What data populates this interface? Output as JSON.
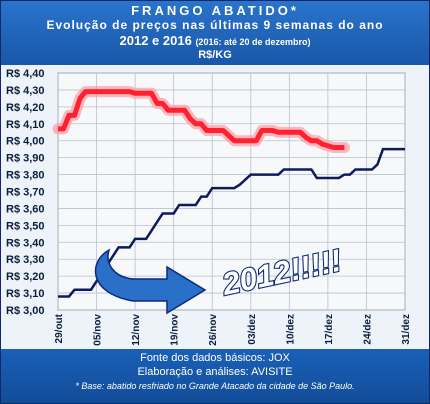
{
  "header": {
    "title": "FRANGO ABATIDO*",
    "subtitle": "Evolução de preços nas últimas 9 semanas do ano",
    "years": "2012 e 2016",
    "note": "(2016: até 20 de dezembro)",
    "unit": "R$/KG"
  },
  "footer": {
    "source": "Fonte dos dados básicos: JOX",
    "credit": "Elaboração e análises: AVISITE",
    "footnote": "* Base: abatido resfriado no Grande Atacado da cidade de São Paulo."
  },
  "colors": {
    "series_2016": "#ff2030",
    "series_2012": "#0d1b5e",
    "arrow": "#2a6fc8",
    "callout_text": "#0d2a7a"
  },
  "chart_data": {
    "type": "line",
    "ylim": [
      3.0,
      4.4
    ],
    "y_ticks": [
      "R$ 3,00",
      "R$ 3,10",
      "R$ 3,20",
      "R$ 3,30",
      "R$ 3,40",
      "R$ 3,50",
      "R$ 3,60",
      "R$ 3,70",
      "R$ 3,80",
      "R$ 3,90",
      "R$ 4,00",
      "R$ 4,10",
      "R$ 4,20",
      "R$ 4,30",
      "R$ 4,40"
    ],
    "x_ticks": [
      "29/out",
      "05/nov",
      "12/nov",
      "19/nov",
      "26/nov",
      "03/dez",
      "10/dez",
      "17/dez",
      "24/dez",
      "31/dez"
    ],
    "grid": true,
    "annotation": "2012!!!!!",
    "series": [
      {
        "name": "2016",
        "x": [
          "29/out",
          "30/out",
          "31/out",
          "01/nov",
          "02/nov",
          "03/nov",
          "04/nov",
          "05/nov",
          "06/nov",
          "07/nov",
          "08/nov",
          "09/nov",
          "10/nov",
          "11/nov",
          "12/nov",
          "13/nov",
          "14/nov",
          "15/nov",
          "16/nov",
          "17/nov",
          "18/nov",
          "19/nov",
          "20/nov",
          "21/nov",
          "22/nov",
          "23/nov",
          "24/nov",
          "25/nov",
          "26/nov",
          "27/nov",
          "28/nov",
          "29/nov",
          "30/nov",
          "01/dez",
          "02/dez",
          "03/dez",
          "04/dez",
          "05/dez",
          "06/dez",
          "07/dez",
          "08/dez",
          "09/dez",
          "10/dez",
          "11/dez",
          "12/dez",
          "13/dez",
          "14/dez",
          "15/dez",
          "16/dez",
          "17/dez",
          "18/dez",
          "19/dez",
          "20/dez"
        ],
        "values": [
          4.07,
          4.07,
          4.15,
          4.15,
          4.25,
          4.29,
          4.29,
          4.29,
          4.29,
          4.29,
          4.29,
          4.29,
          4.29,
          4.29,
          4.28,
          4.28,
          4.28,
          4.28,
          4.22,
          4.22,
          4.18,
          4.18,
          4.18,
          4.18,
          4.13,
          4.1,
          4.1,
          4.06,
          4.06,
          4.06,
          4.06,
          4.03,
          4.0,
          4.0,
          4.0,
          4.0,
          4.0,
          4.06,
          4.06,
          4.06,
          4.05,
          4.05,
          4.05,
          4.05,
          4.05,
          4.02,
          4.0,
          4.0,
          3.98,
          3.97,
          3.96,
          3.96,
          3.96
        ]
      },
      {
        "name": "2012",
        "x": [
          "29/out",
          "30/out",
          "31/out",
          "01/nov",
          "02/nov",
          "03/nov",
          "04/nov",
          "05/nov",
          "06/nov",
          "07/nov",
          "08/nov",
          "09/nov",
          "10/nov",
          "11/nov",
          "12/nov",
          "13/nov",
          "14/nov",
          "15/nov",
          "16/nov",
          "17/nov",
          "18/nov",
          "19/nov",
          "20/nov",
          "21/nov",
          "22/nov",
          "23/nov",
          "24/nov",
          "25/nov",
          "26/nov",
          "27/nov",
          "28/nov",
          "29/nov",
          "30/nov",
          "01/dez",
          "02/dez",
          "03/dez",
          "04/dez",
          "05/dez",
          "06/dez",
          "07/dez",
          "08/dez",
          "09/dez",
          "10/dez",
          "11/dez",
          "12/dez",
          "13/dez",
          "14/dez",
          "15/dez",
          "16/dez",
          "17/dez",
          "18/dez",
          "19/dez",
          "20/dez",
          "21/dez",
          "22/dez",
          "23/dez",
          "24/dez",
          "25/dez",
          "26/dez",
          "27/dez",
          "28/dez",
          "29/dez",
          "30/dez",
          "31/dez"
        ],
        "values": [
          3.08,
          3.08,
          3.08,
          3.12,
          3.12,
          3.12,
          3.12,
          3.17,
          3.22,
          3.27,
          3.32,
          3.37,
          3.37,
          3.37,
          3.42,
          3.42,
          3.42,
          3.47,
          3.52,
          3.57,
          3.57,
          3.57,
          3.62,
          3.62,
          3.62,
          3.62,
          3.67,
          3.67,
          3.72,
          3.72,
          3.72,
          3.72,
          3.72,
          3.74,
          3.77,
          3.8,
          3.8,
          3.8,
          3.8,
          3.8,
          3.8,
          3.83,
          3.83,
          3.83,
          3.83,
          3.83,
          3.83,
          3.78,
          3.78,
          3.78,
          3.78,
          3.78,
          3.8,
          3.8,
          3.83,
          3.83,
          3.83,
          3.83,
          3.86,
          3.95,
          3.95,
          3.95,
          3.95,
          3.95
        ]
      }
    ]
  }
}
